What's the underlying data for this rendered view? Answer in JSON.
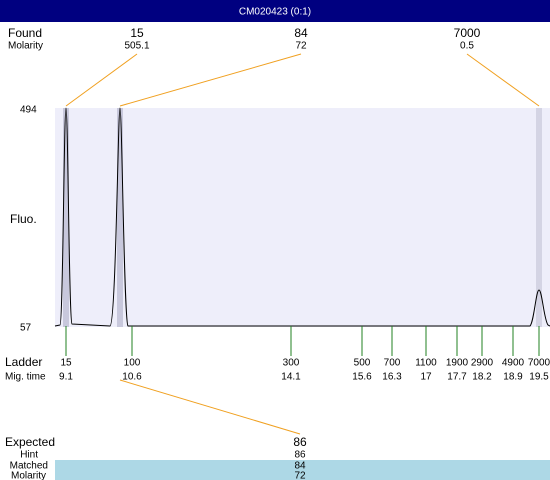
{
  "header": {
    "title": "CM020423 (0:1)"
  },
  "found": {
    "label": "Found",
    "molarity_label": "Molarity",
    "peaks": [
      {
        "size": "15",
        "molarity": "505.1"
      },
      {
        "size": "84",
        "molarity": "72"
      },
      {
        "size": "7000",
        "molarity": "0.5"
      }
    ]
  },
  "axis": {
    "label": "Fluo.",
    "top": "494",
    "bottom": "57"
  },
  "ladder": {
    "label": "Ladder",
    "time_label": "Mig. time",
    "items": [
      {
        "size": "15",
        "time": "9.1"
      },
      {
        "size": "100",
        "time": "10.6"
      },
      {
        "size": "300",
        "time": "14.1"
      },
      {
        "size": "500",
        "time": "15.6"
      },
      {
        "size": "700",
        "time": "16.3"
      },
      {
        "size": "1100",
        "time": "17"
      },
      {
        "size": "1900",
        "time": "17.7"
      },
      {
        "size": "2900",
        "time": "18.2"
      },
      {
        "size": "4900",
        "time": "18.9"
      },
      {
        "size": "7000",
        "time": "19.5"
      }
    ]
  },
  "expected": {
    "label": "Expected",
    "value": "86",
    "rows": [
      {
        "label": "Hint",
        "value": "86"
      },
      {
        "label": "Matched",
        "value": "84"
      },
      {
        "label": "Molarity",
        "value": "72"
      }
    ]
  }
}
